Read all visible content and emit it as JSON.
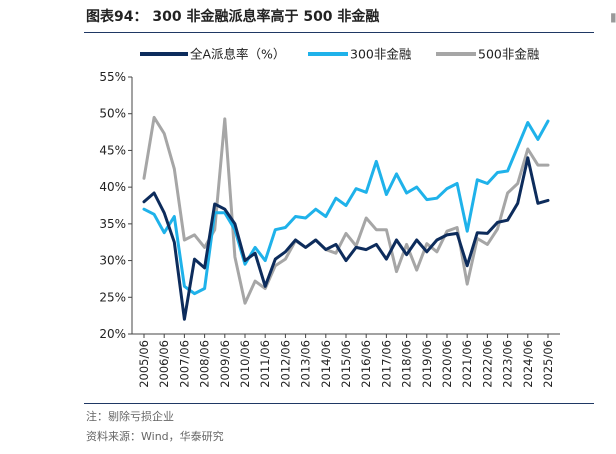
{
  "header": {
    "title": "图表94：  300 非金融派息率高于 500 非金融"
  },
  "footer": {
    "note": "注：剔除亏损企业",
    "source": "资料来源：Wind，华泰研究"
  },
  "colors": {
    "series_1": "#0d2c5c",
    "series_2": "#1fb2ea",
    "series_3": "#a6a6a6"
  },
  "chart_data": {
    "type": "line",
    "ylim": [
      0.2,
      0.55
    ],
    "yticks": [
      "20%",
      "25%",
      "30%",
      "35%",
      "40%",
      "45%",
      "50%",
      "55%"
    ],
    "ytick_values": [
      0.2,
      0.25,
      0.3,
      0.35,
      0.4,
      0.45,
      0.5,
      0.55
    ],
    "xtick_labels": [
      "2005/06",
      "2006/06",
      "2007/06",
      "2008/06",
      "2009/06",
      "2010/06",
      "2011/06",
      "2012/06",
      "2013/06",
      "2014/06",
      "2015/06",
      "2016/06",
      "2017/06",
      "2018/06",
      "2019/06",
      "2020/06",
      "2021/06",
      "2022/06",
      "2023/06",
      "2024/06",
      "2025/06"
    ],
    "legend_placement": "top",
    "grid": false,
    "x": [
      "2005/06",
      "2005/12",
      "2006/06",
      "2006/12",
      "2007/06",
      "2007/12",
      "2008/06",
      "2008/12",
      "2009/06",
      "2009/12",
      "2010/06",
      "2010/12",
      "2011/06",
      "2011/12",
      "2012/06",
      "2012/12",
      "2013/06",
      "2013/12",
      "2014/06",
      "2014/12",
      "2015/06",
      "2015/12",
      "2016/06",
      "2016/12",
      "2017/06",
      "2017/12",
      "2018/06",
      "2018/12",
      "2019/06",
      "2019/12",
      "2020/06",
      "2020/12",
      "2021/06",
      "2021/12",
      "2022/06",
      "2022/12",
      "2023/06",
      "2023/12",
      "2024/06",
      "2024/12",
      "2025/06"
    ],
    "series": [
      {
        "name": "全A派息率（%）",
        "values": [
          0.38,
          0.392,
          0.365,
          0.325,
          0.22,
          0.302,
          0.29,
          0.377,
          0.37,
          0.35,
          0.3,
          0.31,
          0.265,
          0.302,
          0.312,
          0.328,
          0.318,
          0.328,
          0.315,
          0.322,
          0.3,
          0.318,
          0.315,
          0.322,
          0.302,
          0.328,
          0.308,
          0.328,
          0.312,
          0.328,
          0.335,
          0.337,
          0.293,
          0.338,
          0.337,
          0.352,
          0.355,
          0.378,
          0.44,
          0.378,
          0.382
        ]
      },
      {
        "name": "300非金融",
        "values": [
          0.37,
          0.363,
          0.338,
          0.36,
          0.265,
          0.255,
          0.262,
          0.365,
          0.365,
          0.342,
          0.295,
          0.318,
          0.3,
          0.342,
          0.345,
          0.36,
          0.358,
          0.37,
          0.36,
          0.385,
          0.375,
          0.398,
          0.393,
          0.435,
          0.39,
          0.418,
          0.392,
          0.4,
          0.383,
          0.385,
          0.398,
          0.405,
          0.34,
          0.41,
          0.405,
          0.42,
          0.422,
          0.455,
          0.488,
          0.465,
          0.49
        ]
      },
      {
        "name": "500非金融",
        "values": [
          0.412,
          0.495,
          0.473,
          0.425,
          0.328,
          0.335,
          0.318,
          0.342,
          0.493,
          0.305,
          0.242,
          0.272,
          0.262,
          0.293,
          0.302,
          0.327,
          0.318,
          0.328,
          0.315,
          0.31,
          0.337,
          0.32,
          0.358,
          0.342,
          0.342,
          0.285,
          0.322,
          0.287,
          0.323,
          0.312,
          0.34,
          0.345,
          0.268,
          0.33,
          0.322,
          0.343,
          0.392,
          0.405,
          0.452,
          0.43,
          0.43
        ]
      }
    ]
  }
}
